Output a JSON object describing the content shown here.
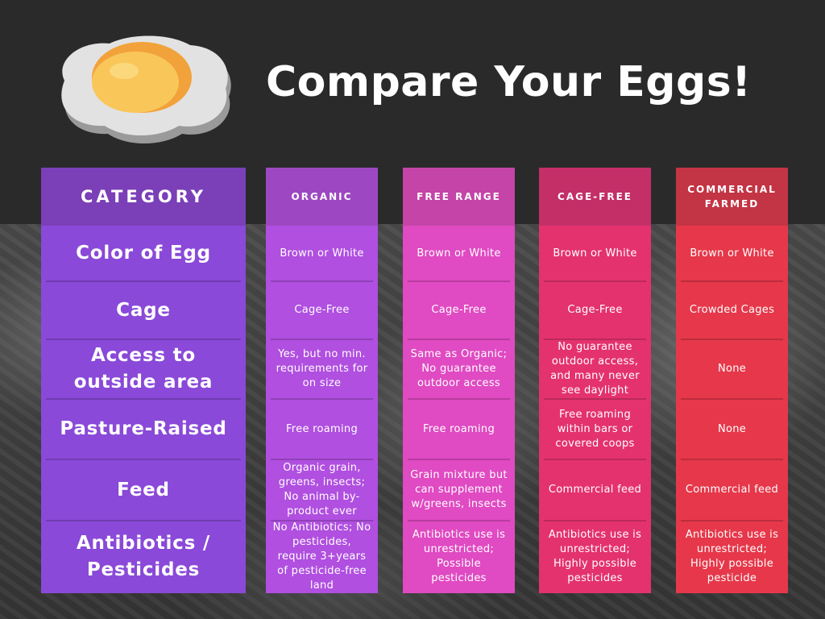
{
  "title": "Compare Your Eggs!",
  "colors": {
    "category": {
      "head": "#7b3fb8",
      "body": "#8a49d8"
    },
    "organic": {
      "head": "#9d48c2",
      "body": "#b04fe0"
    },
    "free_range": {
      "head": "#c444a8",
      "body": "#e04ac2"
    },
    "cage_free": {
      "head": "#c42f68",
      "body": "#e4326f"
    },
    "commercial": {
      "head": "#c33444",
      "body": "#e6384a"
    }
  },
  "columns": {
    "category": {
      "header": "CATEGORY",
      "rows": [
        "Color of Egg",
        "Cage",
        "Access to outside area",
        "Pasture-Raised",
        "Feed",
        "Antibiotics / Pesticides"
      ]
    },
    "organic": {
      "header": "ORGANIC",
      "rows": [
        "Brown or White",
        "Cage-Free",
        "Yes, but no min. requirements for on size",
        "Free roaming",
        "Organic grain, greens, insects; No animal by-product ever",
        "No Antibiotics; No pesticides, require 3+years of pesticide-free land"
      ]
    },
    "free_range": {
      "header": "FREE RANGE",
      "rows": [
        "Brown or White",
        "Cage-Free",
        "Same as Organic; No guarantee outdoor access",
        "Free roaming",
        "Grain mixture but can supplement w/greens, insects",
        "Antibiotics use is unrestricted; Possible pesticides"
      ]
    },
    "cage_free": {
      "header": "CAGE-FREE",
      "rows": [
        "Brown or White",
        "Cage-Free",
        "No guarantee outdoor access, and many never see daylight",
        "Free roaming within bars or covered coops",
        "Commercial feed",
        "Antibiotics use is unrestricted; Highly possible pesticides"
      ]
    },
    "commercial": {
      "header": "COMMERCIAL FARMED",
      "rows": [
        "Brown or White",
        "Crowded Cages",
        "None",
        "None",
        "Commercial feed",
        "Antibiotics use is unrestricted; Highly possible pesticide"
      ]
    }
  }
}
